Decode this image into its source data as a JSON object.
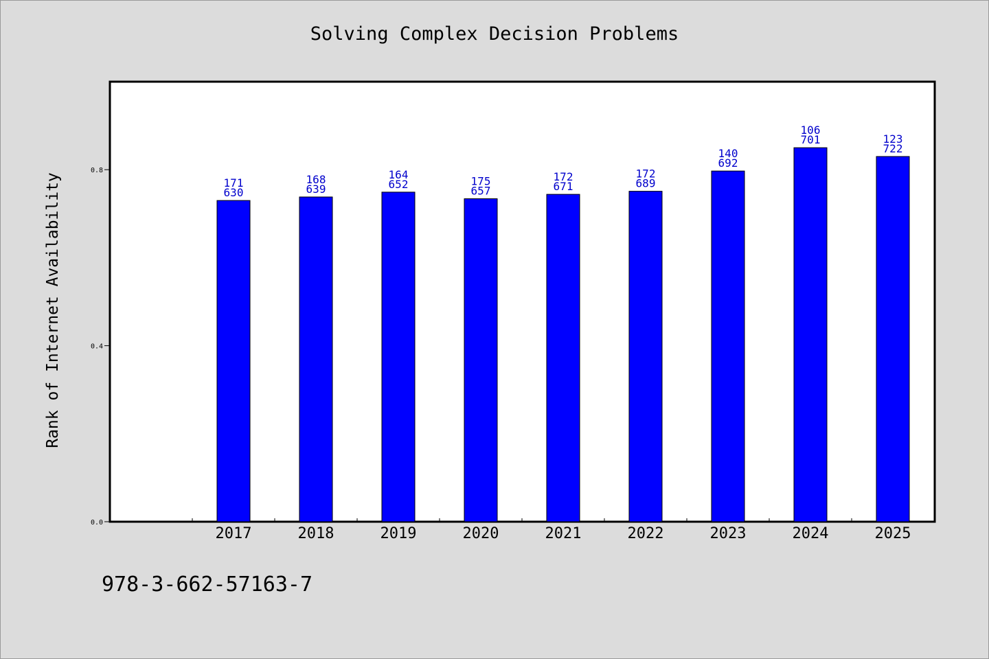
{
  "chart_data": {
    "type": "bar",
    "title": "Solving Complex Decision Problems",
    "ylabel": "Rank of Internet Availability",
    "xlabel": "",
    "categories": [
      "2017",
      "2018",
      "2019",
      "2020",
      "2021",
      "2022",
      "2023",
      "2024",
      "2025"
    ],
    "values": [
      0.73,
      0.738,
      0.749,
      0.734,
      0.744,
      0.751,
      0.797,
      0.85,
      0.83
    ],
    "label_top": [
      "171",
      "168",
      "164",
      "175",
      "172",
      "172",
      "140",
      "106",
      "123"
    ],
    "label_bottom": [
      "630",
      "639",
      "652",
      "657",
      "671",
      "689",
      "692",
      "701",
      "722"
    ],
    "ylim": [
      0,
      1.0
    ],
    "yticks": [
      "0.0",
      "0.4",
      "0.8"
    ],
    "grid": false,
    "bar_color": "#0000ff",
    "label_color": "#0000cc"
  },
  "footer": {
    "isbn": "978-3-662-57163-7"
  }
}
